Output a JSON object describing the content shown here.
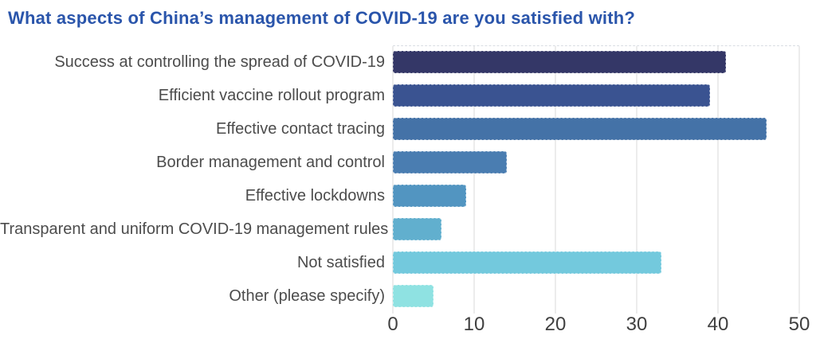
{
  "title": "What aspects of China’s management of COVID-19 are you satisfied with?",
  "colors": {
    "title": "#2a55ab",
    "category_label": "#4c4c4c",
    "tick_label": "#404040",
    "gridline": "#d9d9d9"
  },
  "chart_data": {
    "type": "bar",
    "orientation": "horizontal",
    "title": "What aspects of China’s management of COVID-19 are you satisfied with?",
    "xlabel": "",
    "ylabel": "",
    "xlim": [
      0,
      50
    ],
    "x_ticks": [
      "0",
      "10",
      "20",
      "30",
      "40",
      "50"
    ],
    "grid": "vertical",
    "legend": "none",
    "categories": [
      "Success at controlling the spread of COVID-19",
      "Efficient vaccine rollout program",
      "Effective contact tracing",
      "Border management and control",
      "Effective lockdowns",
      "Transparent and uniform COVID-19 management rules",
      "Not satisfied",
      "Other (please specify)"
    ],
    "values": [
      41,
      39,
      46,
      14,
      9,
      6,
      33,
      5
    ],
    "bar_colors": [
      "#343767",
      "#3a5391",
      "#4472a7",
      "#4a7db1",
      "#5295c1",
      "#61afce",
      "#73c9dd",
      "#8fe2e2"
    ]
  }
}
